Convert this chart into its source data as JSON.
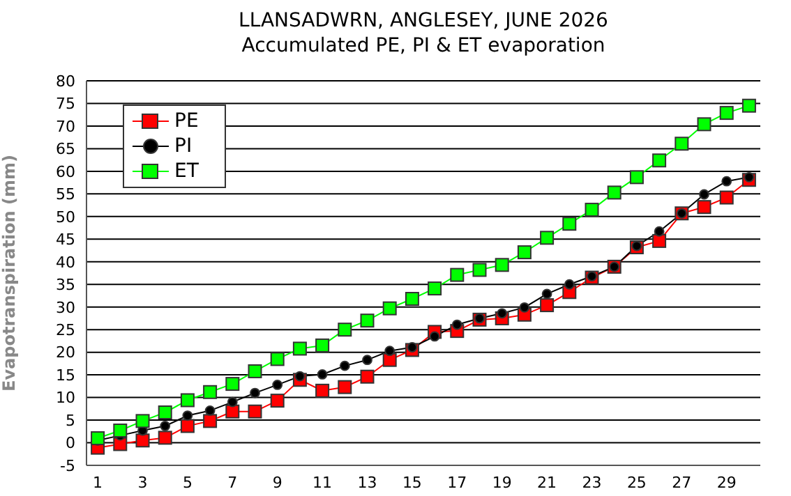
{
  "chart_data": {
    "type": "line",
    "title": "LLANSADWRN, ANGLESEY, JUNE 2026",
    "subtitle": "Accumulated PE,  PI & ET evaporation",
    "ylabel": "Evapotranspiration (mm)",
    "x": [
      1,
      2,
      3,
      4,
      5,
      6,
      7,
      8,
      9,
      10,
      11,
      12,
      13,
      14,
      15,
      16,
      17,
      18,
      19,
      20,
      21,
      22,
      23,
      24,
      25,
      26,
      27,
      28,
      29,
      30
    ],
    "xlim": [
      0.5,
      30.5
    ],
    "xticks": [
      1,
      3,
      5,
      7,
      9,
      11,
      13,
      15,
      17,
      19,
      21,
      23,
      25,
      27,
      29
    ],
    "ylim": [
      -5,
      80
    ],
    "yticks": [
      -5,
      0,
      5,
      10,
      15,
      20,
      25,
      30,
      35,
      40,
      45,
      50,
      55,
      60,
      65,
      70,
      75,
      80
    ],
    "grid": "y",
    "legend": "top left",
    "line_style": "solid",
    "series": [
      {
        "name": "PE",
        "color": "#ff0000",
        "marker": "square",
        "values": [
          -1.1,
          -0.3,
          0.5,
          1.1,
          3.7,
          4.8,
          6.9,
          6.9,
          9.3,
          13.9,
          11.5,
          12.3,
          14.6,
          18.3,
          20.5,
          24.5,
          24.7,
          27.2,
          27.5,
          28.3,
          30.4,
          33.3,
          36.5,
          38.9,
          43.2,
          44.6,
          50.7,
          52.1,
          54.2,
          58.1
        ]
      },
      {
        "name": "PI",
        "color": "#000000",
        "marker": "circle",
        "values": [
          0.5,
          1.6,
          2.7,
          3.7,
          6,
          7.1,
          9,
          11,
          12.8,
          14.7,
          15.1,
          17,
          18.3,
          20.3,
          21.1,
          23.5,
          26.1,
          27.5,
          28.6,
          29.9,
          32.9,
          35,
          36.8,
          38.9,
          43.5,
          46.7,
          50.7,
          54.9,
          57.8,
          58.7
        ]
      },
      {
        "name": "ET",
        "color": "#00ff00",
        "marker": "square",
        "values": [
          1,
          2.7,
          4.8,
          6.7,
          9.4,
          11.2,
          13,
          15.8,
          18.5,
          20.8,
          21.5,
          25,
          27,
          29.7,
          31.8,
          34.1,
          37.1,
          38.2,
          39.3,
          42.1,
          45.3,
          48.4,
          51.5,
          55.3,
          58.7,
          62.4,
          66.1,
          70.4,
          72.9,
          74.5
        ]
      }
    ]
  }
}
